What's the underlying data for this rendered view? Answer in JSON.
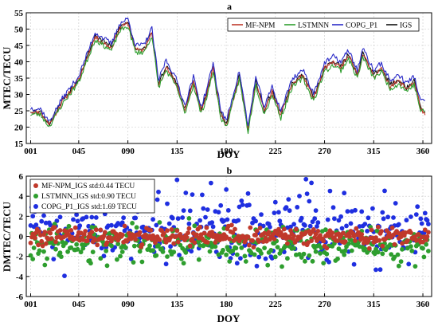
{
  "chart_data": [
    {
      "panel_label": "a",
      "type": "line",
      "xlabel": "DOY",
      "ylabel": "MTEC/TECU",
      "xlim": [
        -3,
        368
      ],
      "ylim": [
        15,
        55
      ],
      "x_ticks": [
        "001",
        "045",
        "090",
        "135",
        "180",
        "225",
        "270",
        "315",
        "360"
      ],
      "x_tick_values": [
        1,
        45,
        90,
        135,
        180,
        225,
        270,
        315,
        360
      ],
      "y_ticks": [
        15,
        20,
        25,
        30,
        35,
        40,
        45,
        50,
        55
      ],
      "grid": true,
      "legend_position": "top-right",
      "legend_layout": "horizontal",
      "x_knots": [
        1,
        10,
        18,
        30,
        45,
        60,
        75,
        82,
        90,
        97,
        105,
        112,
        118,
        125,
        135,
        142,
        150,
        157,
        162,
        168,
        175,
        180,
        185,
        192,
        200,
        207,
        215,
        222,
        230,
        240,
        250,
        260,
        270,
        278,
        285,
        292,
        300,
        305,
        315,
        322,
        330,
        338,
        345,
        352,
        358,
        362
      ],
      "series": [
        {
          "name": "MF-NPM",
          "color": "#c0392b",
          "values": [
            24.8,
            24.5,
            20.8,
            27.8,
            34.5,
            47.5,
            44.2,
            50.0,
            51.8,
            43.5,
            43.8,
            48.7,
            33.0,
            38.2,
            32.8,
            25.0,
            33.8,
            24.8,
            29.8,
            37.8,
            23.8,
            20.6,
            26.8,
            35.6,
            19.2,
            33.7,
            24.8,
            30.8,
            23.6,
            32.8,
            35.8,
            28.8,
            37.8,
            39.8,
            38.2,
            41.8,
            35.8,
            42.2,
            35.8,
            37.8,
            32.6,
            34.0,
            31.8,
            33.8,
            25.8,
            23.6
          ],
          "noise_seed": 11
        },
        {
          "name": "LSTMNN",
          "color": "#2e9e2e",
          "values": [
            24.0,
            23.8,
            20.2,
            27.0,
            33.8,
            46.8,
            43.4,
            49.2,
            51.0,
            42.8,
            43.0,
            48.0,
            32.2,
            37.4,
            32.0,
            24.2,
            33.0,
            24.0,
            29.0,
            37.0,
            23.0,
            20.0,
            26.0,
            34.8,
            18.6,
            32.9,
            24.0,
            30.0,
            22.8,
            32.0,
            35.0,
            28.0,
            37.0,
            39.0,
            37.4,
            41.0,
            35.0,
            41.4,
            35.0,
            37.0,
            31.8,
            33.2,
            31.0,
            33.0,
            25.0,
            24.6
          ],
          "noise_seed": 23
        },
        {
          "name": "COPG_P1",
          "color": "#2b2bc8",
          "values": [
            25.8,
            25.6,
            21.6,
            28.8,
            35.6,
            49.0,
            45.5,
            51.5,
            53.2,
            45.0,
            45.2,
            50.2,
            34.4,
            40.6,
            34.2,
            26.6,
            35.4,
            26.2,
            31.4,
            39.6,
            25.4,
            21.8,
            28.2,
            37.2,
            20.2,
            35.2,
            26.2,
            32.4,
            25.0,
            34.6,
            37.6,
            30.4,
            39.6,
            41.6,
            40.0,
            43.6,
            37.4,
            44.0,
            37.4,
            39.6,
            34.2,
            36.0,
            33.4,
            35.6,
            27.8,
            28.4
          ],
          "noise_seed": 37
        },
        {
          "name": "IGS",
          "color": "#111111",
          "values": [
            25.0,
            24.8,
            21.0,
            28.2,
            34.8,
            48.0,
            44.6,
            50.4,
            52.2,
            44.0,
            44.2,
            49.2,
            33.4,
            38.8,
            33.2,
            25.4,
            34.2,
            25.2,
            30.2,
            38.2,
            24.2,
            20.9,
            27.2,
            36.0,
            19.5,
            34.0,
            25.2,
            31.2,
            24.0,
            33.2,
            36.2,
            29.2,
            38.2,
            40.2,
            38.6,
            42.2,
            36.2,
            42.6,
            36.2,
            38.2,
            33.0,
            34.4,
            32.2,
            34.2,
            26.2,
            24.0
          ],
          "noise_seed": 53
        }
      ]
    },
    {
      "panel_label": "b",
      "type": "scatter",
      "xlabel": "DOY",
      "ylabel": "DMTEC/TECU",
      "xlim": [
        -3,
        368
      ],
      "ylim": [
        -6,
        6
      ],
      "x_ticks": [
        "001",
        "045",
        "090",
        "135",
        "180",
        "225",
        "270",
        "315",
        "360"
      ],
      "x_tick_values": [
        1,
        45,
        90,
        135,
        180,
        225,
        270,
        315,
        360
      ],
      "y_ticks": [
        -6,
        -4,
        -2,
        0,
        2,
        4,
        6
      ],
      "grid": true,
      "legend_position": "top-left",
      "legend_layout": "vertical",
      "x_range_days": [
        1,
        365
      ],
      "series": [
        {
          "name": "MF-NPM_IGS std:0.44 TECU",
          "label": "MF-NPM_IGS std:0.44 TECU",
          "color": "#c0392b",
          "mean": 0.0,
          "std": 0.44,
          "noise_seed": 101
        },
        {
          "name": "LSTMNN_IGS std:0.90 TECU",
          "label": "LSTMNN_IGS std:0.90 TECU",
          "color": "#2e9e2e",
          "mean": -0.8,
          "std": 0.9,
          "noise_seed": 202
        },
        {
          "name": "COPG_P1_IGS std:1.69 TECU",
          "label": "COPG_P1_IGS std:1.69 TECU",
          "color": "#1f2fe0",
          "mean": 0.9,
          "std": 1.69,
          "noise_seed": 303
        }
      ]
    }
  ]
}
